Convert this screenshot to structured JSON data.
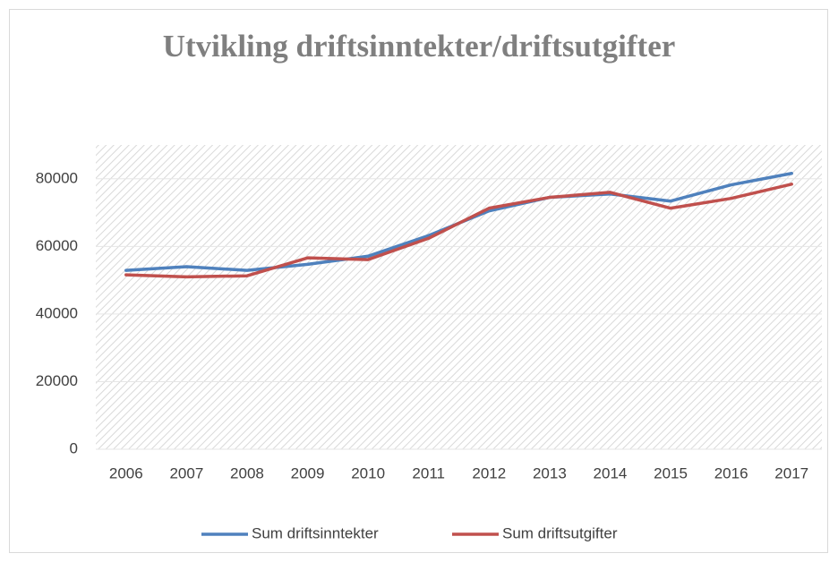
{
  "chart_data": {
    "type": "line",
    "title": "Utvikling driftsinntekter/driftsutgifter",
    "categories": [
      "2006",
      "2007",
      "2008",
      "2009",
      "2010",
      "2011",
      "2012",
      "2013",
      "2014",
      "2015",
      "2016",
      "2017"
    ],
    "series": [
      {
        "name": "Sum driftsinntekter",
        "color": "#4f81bd",
        "values": [
          52900,
          54000,
          52900,
          54700,
          57100,
          63200,
          70500,
          74500,
          75500,
          73400,
          78200,
          81600
        ]
      },
      {
        "name": "Sum driftsutgifter",
        "color": "#c0504d",
        "values": [
          51600,
          51000,
          51300,
          56600,
          56100,
          62400,
          71300,
          74500,
          76000,
          71300,
          74200,
          78400
        ]
      }
    ],
    "ylim": [
      0,
      90000
    ],
    "yticks": [
      0,
      20000,
      40000,
      60000,
      80000
    ],
    "grid": true,
    "legend": "bottom"
  }
}
